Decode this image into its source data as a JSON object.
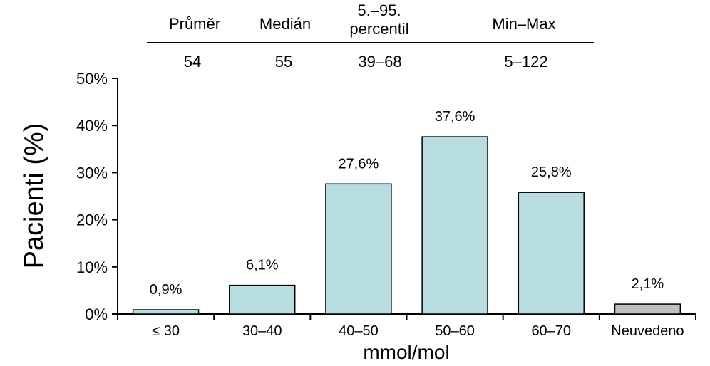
{
  "stats_table": {
    "headers": [
      {
        "line1": "Průměr",
        "line2": ""
      },
      {
        "line1": "Medián",
        "line2": ""
      },
      {
        "line1": "5.–95.",
        "line2": "percentil"
      },
      {
        "line1": "Min–Max",
        "line2": ""
      }
    ],
    "values": [
      "54",
      "55",
      "39–68",
      "5–122"
    ]
  },
  "chart_data": {
    "type": "bar",
    "categories": [
      "≤ 30",
      "30–40",
      "40–50",
      "50–60",
      "60–70",
      "Neuvedeno"
    ],
    "values": [
      0.9,
      6.1,
      27.6,
      37.6,
      25.8,
      2.1
    ],
    "data_labels": [
      "0,9%",
      "6,1%",
      "27,6%",
      "37,6%",
      "25,8%",
      "2,1%"
    ],
    "bar_colors": [
      "#b8dde0",
      "#b8dde0",
      "#b8dde0",
      "#b8dde0",
      "#b8dde0",
      "#bfbfbf"
    ],
    "title": "",
    "xlabel": "mmol/mol",
    "ylabel": "Pacienti (%)",
    "ylim": [
      0,
      50
    ],
    "yticks": [
      0,
      10,
      20,
      30,
      40,
      50
    ],
    "ytick_labels": [
      "0%",
      "10%",
      "20%",
      "30%",
      "40%",
      "50%"
    ],
    "grid": false,
    "legend": "none"
  }
}
